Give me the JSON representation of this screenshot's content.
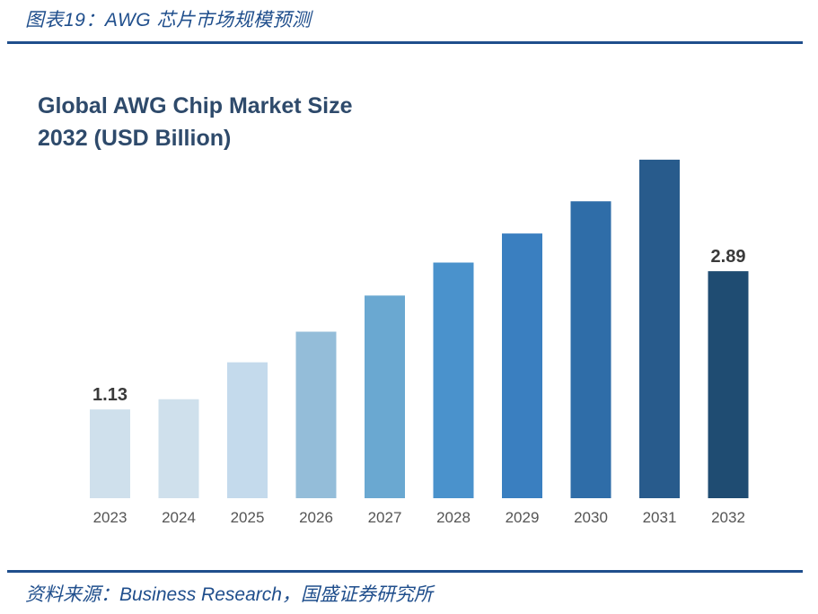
{
  "figure_caption": "图表19：AWG 芯片市场规模预测",
  "source_line": "资料来源：Business Research，国盛证券研究所",
  "chart_data": {
    "type": "bar",
    "title_line1": "Global AWG Chip Market Size",
    "title_line2": "2032 (USD Billion)",
    "categories": [
      "2023",
      "2024",
      "2025",
      "2026",
      "2027",
      "2028",
      "2029",
      "2030",
      "2031",
      "2032"
    ],
    "values": [
      1.13,
      1.26,
      1.73,
      2.12,
      2.58,
      3.0,
      3.37,
      3.78,
      4.31,
      2.89
    ],
    "data_labels": [
      {
        "index": 0,
        "text": "1.13"
      },
      {
        "index": 9,
        "text": "2.89"
      }
    ],
    "colors": [
      "#cfe0ec",
      "#cfe0ec",
      "#c4daec",
      "#94bdd9",
      "#6aa8d1",
      "#4a92cc",
      "#3a7fc0",
      "#2f6da8",
      "#285b8c",
      "#1f4c72"
    ],
    "label_color": "#555555",
    "ylim": [
      0,
      5.2
    ],
    "legend": "none",
    "grid": false
  }
}
